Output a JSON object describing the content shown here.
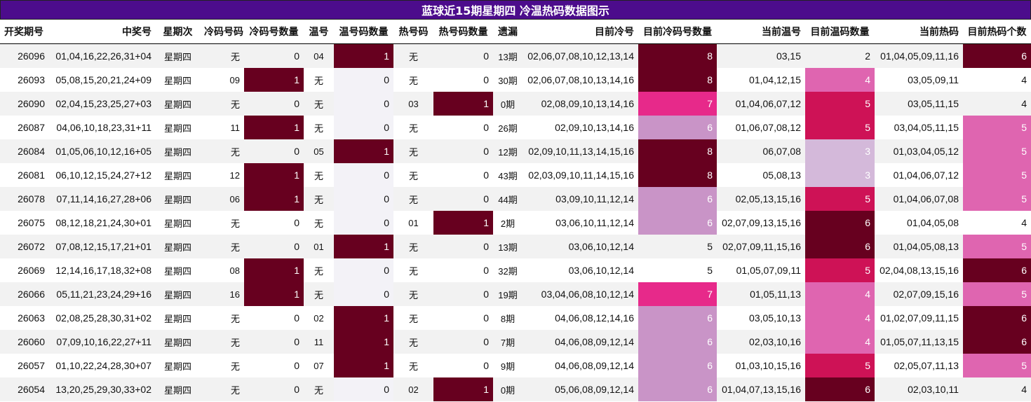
{
  "title": "蓝球近15期星期四 冷温热码数据图示",
  "headers": [
    "开奖期号",
    "中奖号",
    "星期次",
    "冷码号码",
    "冷码号数量",
    "温号",
    "温号码数量",
    "热号码",
    "热号码数量",
    "遗漏",
    "目前冷号",
    "目前冷码号数量",
    "当前温号",
    "目前温码数量",
    "当前热码",
    "目前热码个数"
  ],
  "colors": {
    "title_bg": "#4c0c8c",
    "heat_1": "#67001f",
    "heat_2": "#67001f",
    "heat_3": "#d4b9da",
    "heat_4": "#df65b0",
    "heat_5": "#ce1256",
    "heat_6": "#67001f",
    "heat_7": "#e7298a",
    "heat_8": "#67001f",
    "heat_6_cold": "#c994c7",
    "light_col": "#f3f2f7"
  },
  "rows": [
    {
      "issue": "26096",
      "numbers": "01,04,16,22,26,31+04",
      "weekday": "星期四",
      "cold": "无",
      "cold_count": "0",
      "warm": "04",
      "warm_count": "1",
      "hot": "无",
      "hot_count": "0",
      "missing": "13期",
      "cur_cold": "02,06,07,08,10,12,13,14",
      "cur_cold_count": "8",
      "cur_warm": "03,15",
      "cur_warm_count": "2",
      "cur_hot": "01,04,05,09,11,16",
      "cur_hot_count": "6"
    },
    {
      "issue": "26093",
      "numbers": "05,08,15,20,21,24+09",
      "weekday": "星期四",
      "cold": "09",
      "cold_count": "1",
      "warm": "无",
      "warm_count": "0",
      "hot": "无",
      "hot_count": "0",
      "missing": "30期",
      "cur_cold": "02,06,07,08,10,13,14,16",
      "cur_cold_count": "8",
      "cur_warm": "01,04,12,15",
      "cur_warm_count": "4",
      "cur_hot": "03,05,09,11",
      "cur_hot_count": "4"
    },
    {
      "issue": "26090",
      "numbers": "02,04,15,23,25,27+03",
      "weekday": "星期四",
      "cold": "无",
      "cold_count": "0",
      "warm": "无",
      "warm_count": "0",
      "hot": "03",
      "hot_count": "1",
      "missing": "0期",
      "cur_cold": "02,08,09,10,13,14,16",
      "cur_cold_count": "7",
      "cur_warm": "01,04,06,07,12",
      "cur_warm_count": "5",
      "cur_hot": "03,05,11,15",
      "cur_hot_count": "4"
    },
    {
      "issue": "26087",
      "numbers": "04,06,10,18,23,31+11",
      "weekday": "星期四",
      "cold": "11",
      "cold_count": "1",
      "warm": "无",
      "warm_count": "0",
      "hot": "无",
      "hot_count": "0",
      "missing": "26期",
      "cur_cold": "02,09,10,13,14,16",
      "cur_cold_count": "6",
      "cur_warm": "01,06,07,08,12",
      "cur_warm_count": "5",
      "cur_hot": "03,04,05,11,15",
      "cur_hot_count": "5"
    },
    {
      "issue": "26084",
      "numbers": "01,05,06,10,12,16+05",
      "weekday": "星期四",
      "cold": "无",
      "cold_count": "0",
      "warm": "05",
      "warm_count": "1",
      "hot": "无",
      "hot_count": "0",
      "missing": "12期",
      "cur_cold": "02,09,10,11,13,14,15,16",
      "cur_cold_count": "8",
      "cur_warm": "06,07,08",
      "cur_warm_count": "3",
      "cur_hot": "01,03,04,05,12",
      "cur_hot_count": "5"
    },
    {
      "issue": "26081",
      "numbers": "06,10,12,15,24,27+12",
      "weekday": "星期四",
      "cold": "12",
      "cold_count": "1",
      "warm": "无",
      "warm_count": "0",
      "hot": "无",
      "hot_count": "0",
      "missing": "43期",
      "cur_cold": "02,03,09,10,11,14,15,16",
      "cur_cold_count": "8",
      "cur_warm": "05,08,13",
      "cur_warm_count": "3",
      "cur_hot": "01,04,06,07,12",
      "cur_hot_count": "5"
    },
    {
      "issue": "26078",
      "numbers": "07,11,14,16,27,28+06",
      "weekday": "星期四",
      "cold": "06",
      "cold_count": "1",
      "warm": "无",
      "warm_count": "0",
      "hot": "无",
      "hot_count": "0",
      "missing": "44期",
      "cur_cold": "03,09,10,11,12,14",
      "cur_cold_count": "6",
      "cur_warm": "02,05,13,15,16",
      "cur_warm_count": "5",
      "cur_hot": "01,04,06,07,08",
      "cur_hot_count": "5"
    },
    {
      "issue": "26075",
      "numbers": "08,12,18,21,24,30+01",
      "weekday": "星期四",
      "cold": "无",
      "cold_count": "0",
      "warm": "无",
      "warm_count": "0",
      "hot": "01",
      "hot_count": "1",
      "missing": "2期",
      "cur_cold": "03,06,10,11,12,14",
      "cur_cold_count": "6",
      "cur_warm": "02,07,09,13,15,16",
      "cur_warm_count": "6",
      "cur_hot": "01,04,05,08",
      "cur_hot_count": "4"
    },
    {
      "issue": "26072",
      "numbers": "07,08,12,15,17,21+01",
      "weekday": "星期四",
      "cold": "无",
      "cold_count": "0",
      "warm": "01",
      "warm_count": "1",
      "hot": "无",
      "hot_count": "0",
      "missing": "13期",
      "cur_cold": "03,06,10,12,14",
      "cur_cold_count": "5",
      "cur_warm": "02,07,09,11,15,16",
      "cur_warm_count": "6",
      "cur_hot": "01,04,05,08,13",
      "cur_hot_count": "5"
    },
    {
      "issue": "26069",
      "numbers": "12,14,16,17,18,32+08",
      "weekday": "星期四",
      "cold": "08",
      "cold_count": "1",
      "warm": "无",
      "warm_count": "0",
      "hot": "无",
      "hot_count": "0",
      "missing": "32期",
      "cur_cold": "03,06,10,12,14",
      "cur_cold_count": "5",
      "cur_warm": "01,05,07,09,11",
      "cur_warm_count": "5",
      "cur_hot": "02,04,08,13,15,16",
      "cur_hot_count": "6"
    },
    {
      "issue": "26066",
      "numbers": "05,11,21,23,24,29+16",
      "weekday": "星期四",
      "cold": "16",
      "cold_count": "1",
      "warm": "无",
      "warm_count": "0",
      "hot": "无",
      "hot_count": "0",
      "missing": "19期",
      "cur_cold": "03,04,06,08,10,12,14",
      "cur_cold_count": "7",
      "cur_warm": "01,05,11,13",
      "cur_warm_count": "4",
      "cur_hot": "02,07,09,15,16",
      "cur_hot_count": "5"
    },
    {
      "issue": "26063",
      "numbers": "02,08,25,28,30,31+02",
      "weekday": "星期四",
      "cold": "无",
      "cold_count": "0",
      "warm": "02",
      "warm_count": "1",
      "hot": "无",
      "hot_count": "0",
      "missing": "8期",
      "cur_cold": "04,06,08,12,14,16",
      "cur_cold_count": "6",
      "cur_warm": "03,05,10,13",
      "cur_warm_count": "4",
      "cur_hot": "01,02,07,09,11,15",
      "cur_hot_count": "6"
    },
    {
      "issue": "26060",
      "numbers": "07,09,10,16,22,27+11",
      "weekday": "星期四",
      "cold": "无",
      "cold_count": "0",
      "warm": "11",
      "warm_count": "1",
      "hot": "无",
      "hot_count": "0",
      "missing": "7期",
      "cur_cold": "04,06,08,09,12,14",
      "cur_cold_count": "6",
      "cur_warm": "02,03,10,16",
      "cur_warm_count": "4",
      "cur_hot": "01,05,07,11,13,15",
      "cur_hot_count": "6"
    },
    {
      "issue": "26057",
      "numbers": "01,10,22,24,28,30+07",
      "weekday": "星期四",
      "cold": "无",
      "cold_count": "0",
      "warm": "07",
      "warm_count": "1",
      "hot": "无",
      "hot_count": "0",
      "missing": "9期",
      "cur_cold": "04,06,08,09,12,14",
      "cur_cold_count": "6",
      "cur_warm": "01,03,10,15,16",
      "cur_warm_count": "5",
      "cur_hot": "02,05,07,11,13",
      "cur_hot_count": "5"
    },
    {
      "issue": "26054",
      "numbers": "13,20,25,29,30,33+02",
      "weekday": "星期四",
      "cold": "无",
      "cold_count": "0",
      "warm": "无",
      "warm_count": "0",
      "hot": "02",
      "hot_count": "1",
      "missing": "0期",
      "cur_cold": "05,06,08,09,12,14",
      "cur_cold_count": "6",
      "cur_warm": "01,04,07,13,15,16",
      "cur_warm_count": "6",
      "cur_hot": "02,03,10,11",
      "cur_hot_count": "4"
    }
  ]
}
